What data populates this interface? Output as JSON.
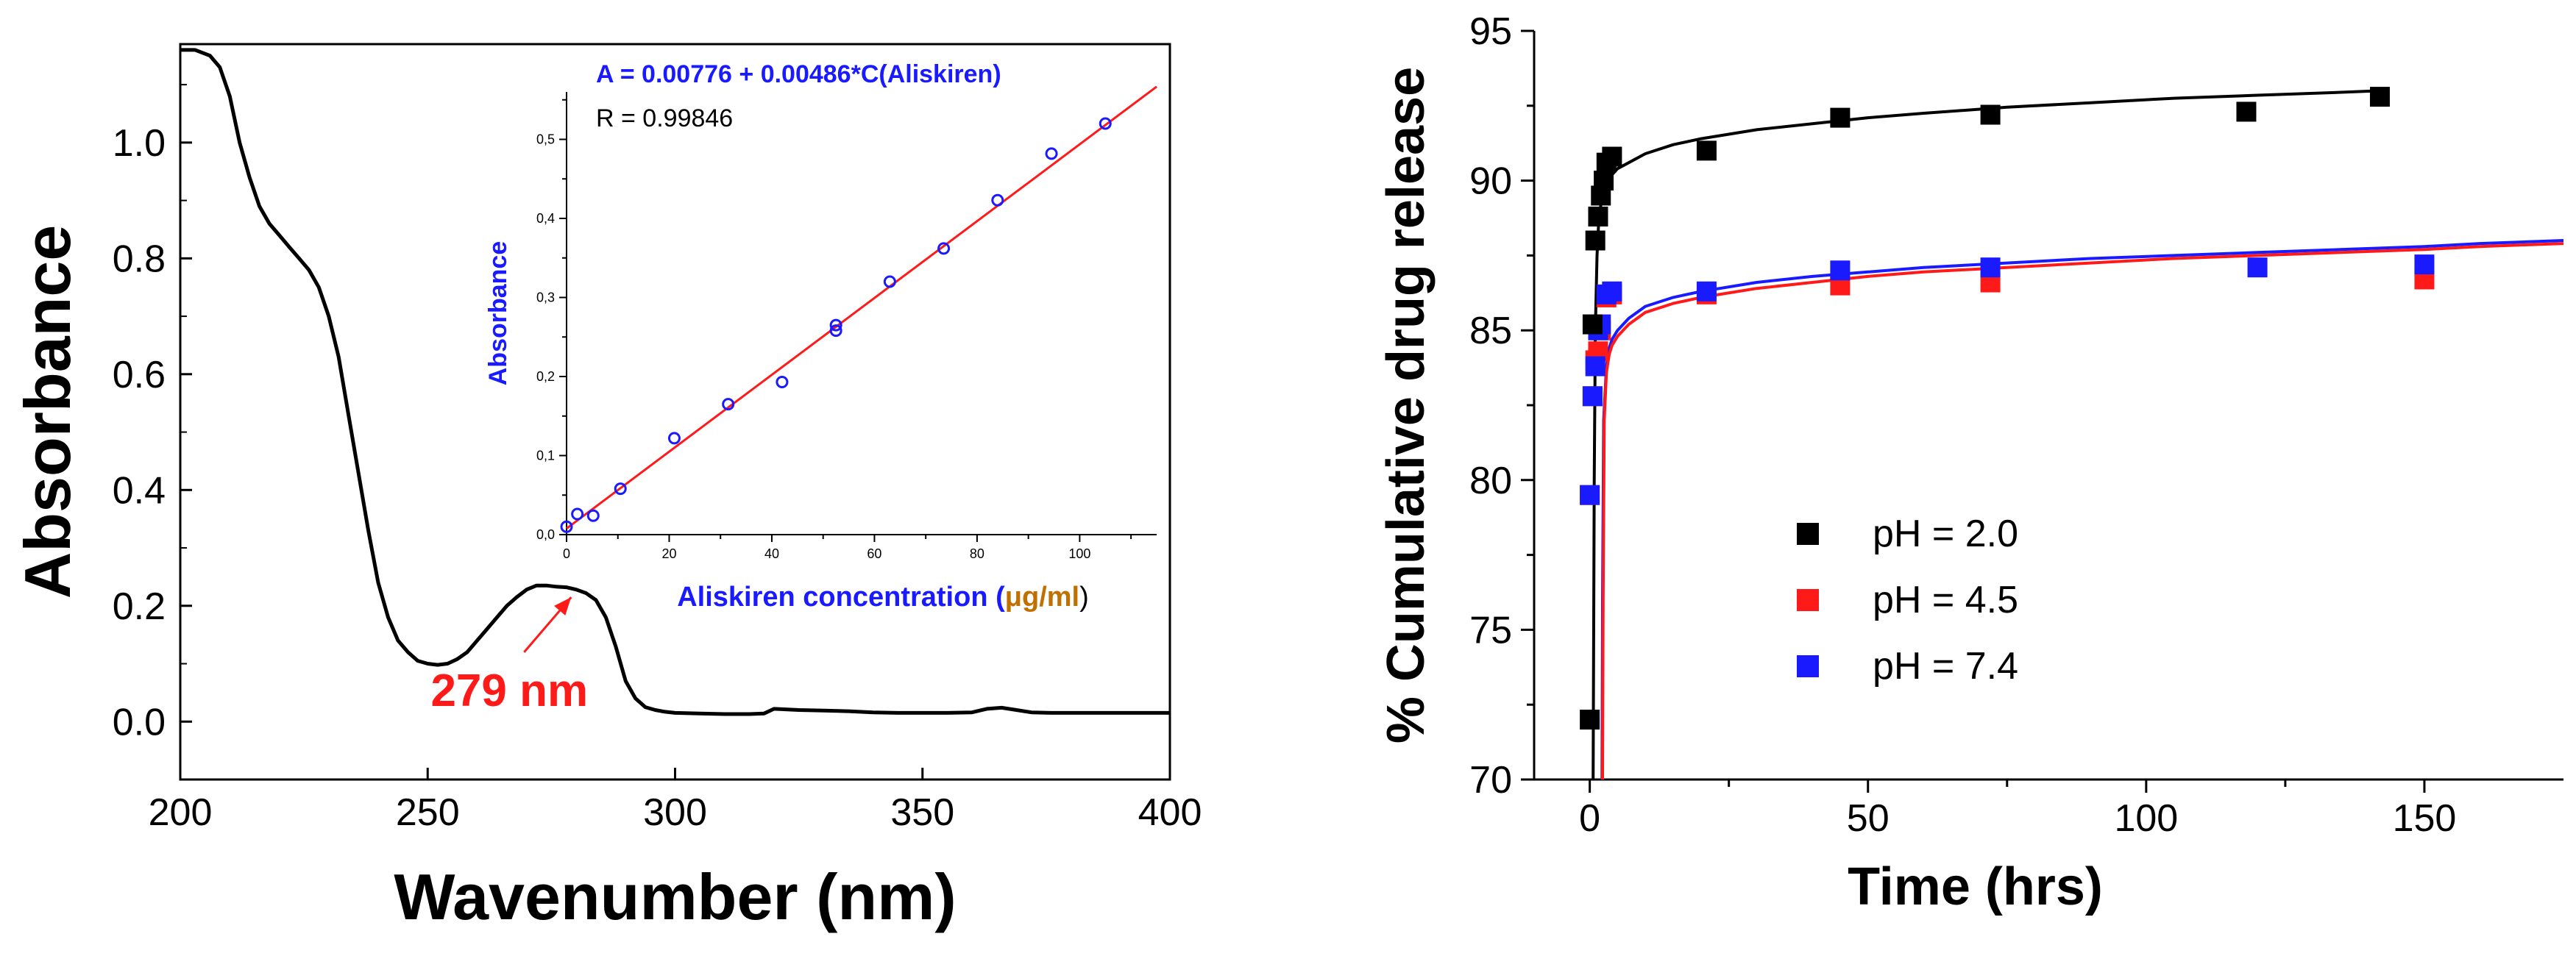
{
  "chart_data": [
    {
      "type": "line",
      "title": "",
      "xlabel": "Wavenumber (nm)",
      "ylabel": "Absorbance",
      "xlim": [
        200,
        400
      ],
      "ylim": [
        -0.1,
        1.17
      ],
      "xticks": [
        "200",
        "250",
        "300",
        "350",
        "400"
      ],
      "yticks": [
        "0.0",
        "0.2",
        "0.4",
        "0.6",
        "0.8",
        "1.0"
      ],
      "series": [
        {
          "name": "Aliskiren UV spectrum",
          "color": "#000000",
          "x": [
            200,
            203,
            206,
            208,
            210,
            212,
            214,
            216,
            218,
            220,
            222,
            224,
            226,
            228,
            230,
            232,
            234,
            236,
            238,
            240,
            242,
            244,
            246,
            248,
            250,
            252,
            254,
            256,
            258,
            260,
            262,
            264,
            266,
            268,
            270,
            272,
            274,
            276,
            278,
            280,
            282,
            284,
            286,
            288,
            290,
            292,
            294,
            296,
            298,
            300,
            305,
            310,
            315,
            318,
            320,
            325,
            330,
            335,
            340,
            345,
            350,
            355,
            360,
            363,
            366,
            369,
            372,
            376,
            380,
            385,
            390,
            395,
            400
          ],
          "y": [
            1.16,
            1.16,
            1.15,
            1.13,
            1.08,
            1.0,
            0.94,
            0.89,
            0.86,
            0.84,
            0.82,
            0.8,
            0.78,
            0.75,
            0.7,
            0.63,
            0.53,
            0.43,
            0.33,
            0.24,
            0.18,
            0.14,
            0.12,
            0.105,
            0.1,
            0.098,
            0.1,
            0.108,
            0.12,
            0.14,
            0.16,
            0.18,
            0.2,
            0.215,
            0.228,
            0.235,
            0.235,
            0.233,
            0.232,
            0.228,
            0.222,
            0.21,
            0.18,
            0.13,
            0.07,
            0.04,
            0.025,
            0.02,
            0.017,
            0.015,
            0.014,
            0.013,
            0.013,
            0.014,
            0.022,
            0.02,
            0.019,
            0.018,
            0.016,
            0.015,
            0.015,
            0.015,
            0.016,
            0.022,
            0.024,
            0.02,
            0.016,
            0.015,
            0.015,
            0.015,
            0.015,
            0.015,
            0.015
          ]
        }
      ],
      "annotation": {
        "text": "279 nm",
        "color": "#ff1a1a",
        "points_to": {
          "x": 279,
          "y": 0.23
        },
        "label_at": {
          "x": 268,
          "y": 0.05
        }
      },
      "inset": {
        "type": "scatter",
        "xlabel": "Aliskiren concentration (μg/ml)",
        "xlabel_main": "Aliskiren concentration (",
        "xlabel_unit": "μg/ml",
        "xlabel_close": ")",
        "ylabel": "Absorbance",
        "xlim": [
          0,
          115
        ],
        "ylim": [
          0,
          0.56
        ],
        "xticks": [
          "0",
          "20",
          "40",
          "60",
          "80",
          "100"
        ],
        "yticks": [
          "0,0",
          "0,1",
          "0,2",
          "0,3",
          "0,4",
          "0,5"
        ],
        "equation": "A = 0.00776 + 0.00486*C(Aliskiren)",
        "r_value": "R = 0.99846",
        "fit": {
          "intercept": 0.00776,
          "slope": 0.00486,
          "color": "#ff1a1a"
        },
        "points": {
          "color": "#1a1aff",
          "x": [
            0,
            2.1,
            5.2,
            10.5,
            21,
            31.5,
            42,
            52.5,
            52.5,
            63,
            73.5,
            84,
            94.5,
            105
          ],
          "y": [
            0.01,
            0.026,
            0.024,
            0.058,
            0.122,
            0.165,
            0.193,
            0.258,
            0.265,
            0.32,
            0.362,
            0.423,
            0.482,
            0.52
          ]
        }
      }
    },
    {
      "type": "scatter",
      "title": "",
      "xlabel": "Time (hrs)",
      "ylabel": "% Cumulative drug release",
      "xlim": [
        -10,
        175
      ],
      "ylim": [
        70,
        95
      ],
      "xticks": [
        "0",
        "50",
        "100",
        "150"
      ],
      "yticks": [
        "70",
        "75",
        "80",
        "85",
        "90",
        "95"
      ],
      "legend": "center",
      "series": [
        {
          "name": "pH = 2.0",
          "color": "#000000",
          "x": [
            0,
            0.5,
            1,
            1.5,
            2,
            2.5,
            3,
            4,
            21,
            45,
            72,
            118,
            142
          ],
          "y": [
            72.0,
            85.2,
            88.0,
            88.8,
            89.5,
            90.0,
            90.6,
            90.8,
            91.0,
            92.1,
            92.2,
            92.3,
            92.8
          ],
          "fit_x": [
            0.6,
            0.8,
            1.0,
            1.3,
            1.6,
            2,
            2.5,
            3,
            4,
            5,
            7,
            10,
            15,
            20,
            30,
            40,
            50,
            60,
            75,
            90,
            105,
            120,
            135,
            142
          ],
          "fit_y": [
            70.0,
            80.0,
            85.0,
            87.5,
            88.6,
            89.2,
            89.6,
            89.9,
            90.2,
            90.4,
            90.6,
            90.9,
            91.2,
            91.4,
            91.7,
            91.9,
            92.1,
            92.25,
            92.45,
            92.6,
            92.75,
            92.85,
            92.95,
            93.0
          ]
        },
        {
          "name": "pH = 4.5",
          "color": "#ff1a1a",
          "x": [
            0,
            0.5,
            1,
            1.5,
            2,
            3,
            4,
            21,
            45,
            72,
            150
          ],
          "y": [
            79.5,
            82.8,
            84.0,
            84.3,
            85.0,
            86.1,
            86.2,
            86.2,
            86.5,
            86.6,
            86.7
          ],
          "fit_x": [
            2.3,
            2.4,
            2.6,
            3,
            3.5,
            4,
            5,
            7,
            10,
            15,
            20,
            30,
            40,
            50,
            60,
            75,
            90,
            105,
            120,
            135,
            150,
            160,
            175
          ],
          "fit_y": [
            70.0,
            76.0,
            82.0,
            83.6,
            84.2,
            84.5,
            84.8,
            85.2,
            85.6,
            85.9,
            86.1,
            86.4,
            86.6,
            86.8,
            86.95,
            87.1,
            87.25,
            87.4,
            87.5,
            87.6,
            87.7,
            87.8,
            87.9
          ]
        },
        {
          "name": "pH = 7.4",
          "color": "#1a1aff",
          "x": [
            0,
            0.5,
            1,
            1.5,
            2,
            3,
            4,
            21,
            45,
            72,
            120,
            150
          ],
          "y": [
            79.5,
            82.8,
            83.8,
            85.0,
            85.2,
            86.2,
            86.3,
            86.3,
            87.0,
            87.1,
            87.1,
            87.2
          ],
          "fit_x": [
            2.2,
            2.3,
            2.5,
            3,
            3.5,
            4,
            5,
            7,
            10,
            15,
            20,
            30,
            40,
            50,
            60,
            75,
            90,
            105,
            120,
            135,
            150,
            160,
            175
          ],
          "fit_y": [
            70.0,
            76.0,
            82.0,
            83.8,
            84.4,
            84.7,
            85.0,
            85.4,
            85.8,
            86.1,
            86.3,
            86.6,
            86.8,
            86.95,
            87.1,
            87.25,
            87.4,
            87.5,
            87.6,
            87.7,
            87.8,
            87.9,
            88.0
          ]
        }
      ]
    }
  ]
}
